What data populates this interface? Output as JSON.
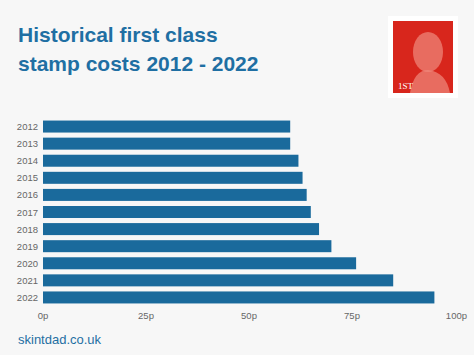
{
  "chart_data": {
    "type": "bar",
    "title": "Historical first class stamp costs 2012 - 2022",
    "orientation": "horizontal",
    "categories": [
      "2012",
      "2013",
      "2014",
      "2015",
      "2016",
      "2017",
      "2018",
      "2019",
      "2020",
      "2021",
      "2022"
    ],
    "values": [
      60,
      60,
      62,
      63,
      64,
      65,
      67,
      70,
      76,
      85,
      95
    ],
    "color": "#1a6a9c",
    "xlim": [
      0,
      100
    ],
    "xticks": [
      {
        "value": 0,
        "label": "0p"
      },
      {
        "value": 25,
        "label": "25p"
      },
      {
        "value": 50,
        "label": "50p"
      },
      {
        "value": 75,
        "label": "75p"
      },
      {
        "value": 100,
        "label": "100p"
      }
    ],
    "grid": false,
    "annotations": [
      "1ST"
    ],
    "source": "skintdad.co.uk"
  }
}
